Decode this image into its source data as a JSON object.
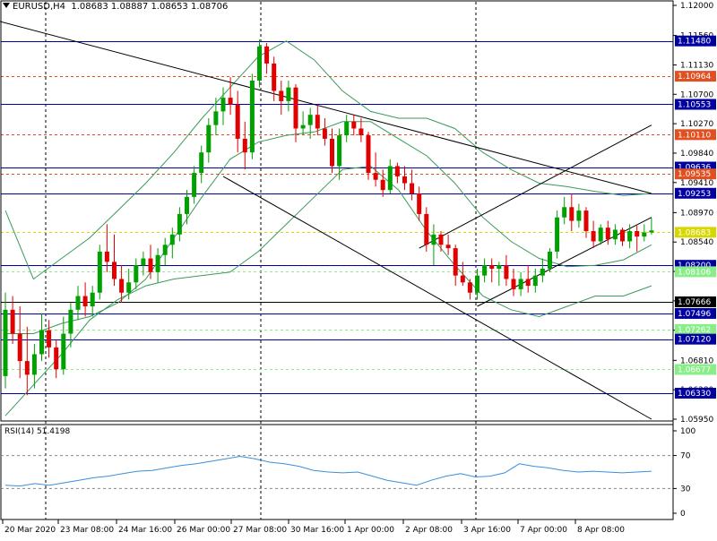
{
  "header": {
    "symbol": "EURUSD,H4",
    "ohlc": "1.08683 1.08887 1.08653 1.08706"
  },
  "rsi_header": {
    "label": "RSI(14) 51.4198"
  },
  "chart_data": [
    {
      "type": "candlestick",
      "title": "EURUSD,H4 1.08683 1.08887 1.08653 1.08706",
      "ylim": [
        1.0595,
        1.12
      ],
      "y_ticks": [
        "1.12000",
        "1.11560",
        "1.11130",
        "1.10700",
        "1.10270",
        "1.09840",
        "1.09410",
        "1.08970",
        "1.08540",
        "1.08110",
        "1.07680",
        "1.07250",
        "1.06810",
        "1.06380",
        "1.05950"
      ],
      "x_labels": [
        "20 Mar 2020",
        "23 Mar 08:00",
        "24 Mar 16:00",
        "26 Mar 00:00",
        "27 Mar 08:00",
        "30 Mar 16:00",
        "1 Apr 00:00",
        "2 Apr 08:00",
        "3 Apr 16:00",
        "7 Apr 00:00",
        "8 Apr 08:00"
      ],
      "colors": {
        "bull": "#00a000",
        "bear": "#e00000",
        "bands": "#3a9a5a",
        "rsi": "#3a8fd8"
      },
      "horizontal_levels": [
        {
          "value": 1.1148,
          "label": "1.11480",
          "style": "solid",
          "color": "#0000a0"
        },
        {
          "value": 1.10964,
          "label": "1.10964",
          "style": "dashed",
          "color": "#e05020"
        },
        {
          "value": 1.10553,
          "label": "1.10553",
          "style": "solid",
          "color": "#0000a0"
        },
        {
          "value": 1.1011,
          "label": "1.10110",
          "style": "dashed",
          "color": "#e05020"
        },
        {
          "value": 1.09636,
          "label": "1.09636",
          "style": "solid",
          "color": "#0000a0"
        },
        {
          "value": 1.09535,
          "label": "1.09535",
          "style": "dashed",
          "color": "#e05020"
        },
        {
          "value": 1.09253,
          "label": "1.09253",
          "style": "solid",
          "color": "#0000a0"
        },
        {
          "value": 1.08683,
          "label": "1.08683",
          "style": "dashed",
          "color": "#d8d800"
        },
        {
          "value": 1.082,
          "label": "1.08200",
          "style": "solid",
          "color": "#0000a0"
        },
        {
          "value": 1.08106,
          "label": "1.08106",
          "style": "dashed",
          "color": "#88ee88"
        },
        {
          "value": 1.07666,
          "label": "1.07666",
          "style": "solid",
          "color": "#000000"
        },
        {
          "value": 1.07496,
          "label": "1.07496",
          "style": "solid",
          "color": "#0000a0"
        },
        {
          "value": 1.07262,
          "label": "1.07262",
          "style": "dashed",
          "color": "#88ee88"
        },
        {
          "value": 1.0712,
          "label": "1.07120",
          "style": "solid",
          "color": "#0000a0"
        },
        {
          "value": 1.06677,
          "label": "1.06677",
          "style": "dashed",
          "color": "#88ee88"
        },
        {
          "value": 1.0633,
          "label": "1.06330",
          "style": "solid",
          "color": "#0000a0"
        }
      ],
      "candles": [
        [
          1.0658,
          1.078,
          1.064,
          1.0755
        ],
        [
          1.0755,
          1.0775,
          1.0705,
          1.072
        ],
        [
          1.072,
          1.076,
          1.0655,
          1.068
        ],
        [
          1.068,
          1.073,
          1.063,
          1.066
        ],
        [
          1.066,
          1.0705,
          1.064,
          1.069
        ],
        [
          1.069,
          1.075,
          1.068,
          1.0725
        ],
        [
          1.0725,
          1.074,
          1.0685,
          1.07
        ],
        [
          1.07,
          1.071,
          1.0655,
          1.0668
        ],
        [
          1.0668,
          1.0745,
          1.066,
          1.072
        ],
        [
          1.072,
          1.0765,
          1.07,
          1.0755
        ],
        [
          1.0755,
          1.079,
          1.074,
          1.0775
        ],
        [
          1.0775,
          1.0795,
          1.0745,
          1.076
        ],
        [
          1.076,
          1.079,
          1.0745,
          1.078
        ],
        [
          1.078,
          1.085,
          1.077,
          1.084
        ],
        [
          1.084,
          1.088,
          1.081,
          1.0825
        ],
        [
          1.0825,
          1.0865,
          1.079,
          1.08
        ],
        [
          1.08,
          1.082,
          1.0765,
          1.078
        ],
        [
          1.078,
          1.0815,
          1.077,
          1.0795
        ],
        [
          1.0795,
          1.083,
          1.0785,
          1.082
        ],
        [
          1.082,
          1.084,
          1.0805,
          1.083
        ],
        [
          1.083,
          1.085,
          1.08,
          1.081
        ],
        [
          1.081,
          1.0845,
          1.0795,
          1.0835
        ],
        [
          1.0835,
          1.086,
          1.082,
          1.085
        ],
        [
          1.085,
          1.0875,
          1.083,
          1.0865
        ],
        [
          1.0865,
          1.0905,
          1.0855,
          1.0895
        ],
        [
          1.0895,
          1.093,
          1.088,
          1.092
        ],
        [
          1.092,
          1.0965,
          1.091,
          1.0955
        ],
        [
          1.0955,
          1.0995,
          1.094,
          1.0985
        ],
        [
          1.0985,
          1.1035,
          1.097,
          1.1025
        ],
        [
          1.1025,
          1.1065,
          1.101,
          1.1045
        ],
        [
          1.1045,
          1.108,
          1.1025,
          1.1065
        ],
        [
          1.1065,
          1.1095,
          1.104,
          1.1055
        ],
        [
          1.1055,
          1.1075,
          1.0985,
          1.1005
        ],
        [
          1.1005,
          1.103,
          1.096,
          1.0985
        ],
        [
          1.0985,
          1.11,
          1.0975,
          1.109
        ],
        [
          1.109,
          1.115,
          1.108,
          1.114
        ],
        [
          1.114,
          1.1145,
          1.11,
          1.1115
        ],
        [
          1.1115,
          1.1125,
          1.106,
          1.1075
        ],
        [
          1.1075,
          1.109,
          1.104,
          1.106
        ],
        [
          1.106,
          1.109,
          1.1045,
          1.108
        ],
        [
          1.108,
          1.1085,
          1.1,
          1.102
        ],
        [
          1.102,
          1.1045,
          1.101,
          1.1025
        ],
        [
          1.1025,
          1.105,
          1.1005,
          1.104
        ],
        [
          1.104,
          1.1055,
          1.101,
          1.102
        ],
        [
          1.102,
          1.1035,
          1.0995,
          1.1005
        ],
        [
          1.1005,
          1.102,
          1.0955,
          1.0965
        ],
        [
          1.0965,
          1.102,
          1.0945,
          1.101
        ],
        [
          1.101,
          1.104,
          1.1,
          1.103
        ],
        [
          1.103,
          1.104,
          1.101,
          1.102
        ],
        [
          1.102,
          1.1035,
          1.1,
          1.101
        ],
        [
          1.101,
          1.1015,
          1.0945,
          1.0955
        ],
        [
          1.0955,
          1.0985,
          1.0935,
          1.0945
        ],
        [
          1.0945,
          1.096,
          1.092,
          1.093
        ],
        [
          1.093,
          1.0975,
          1.0925,
          1.0965
        ],
        [
          1.0965,
          1.097,
          1.094,
          1.095
        ],
        [
          1.095,
          1.0965,
          1.093,
          1.094
        ],
        [
          1.094,
          1.096,
          1.0915,
          1.0925
        ],
        [
          1.0925,
          1.0935,
          1.0885,
          1.0895
        ],
        [
          1.0895,
          1.0905,
          1.084,
          1.085
        ],
        [
          1.085,
          1.088,
          1.082,
          1.0865
        ],
        [
          1.0865,
          1.087,
          1.084,
          1.085
        ],
        [
          1.085,
          1.0865,
          1.0835,
          1.0845
        ],
        [
          1.0845,
          1.085,
          1.079,
          1.0805
        ],
        [
          1.0805,
          1.0825,
          1.079,
          1.0795
        ],
        [
          1.0795,
          1.08,
          1.077,
          1.078
        ],
        [
          1.078,
          1.0815,
          1.077,
          1.0805
        ],
        [
          1.0805,
          1.083,
          1.0795,
          1.082
        ],
        [
          1.082,
          1.083,
          1.0795,
          1.0815
        ],
        [
          1.0815,
          1.0825,
          1.079,
          1.082
        ],
        [
          1.082,
          1.0835,
          1.079,
          1.08
        ],
        [
          1.08,
          1.0815,
          1.0775,
          1.0785
        ],
        [
          1.0785,
          1.081,
          1.0775,
          1.08
        ],
        [
          1.08,
          1.082,
          1.078,
          1.079
        ],
        [
          1.079,
          1.0815,
          1.078,
          1.0805
        ],
        [
          1.0805,
          1.083,
          1.0795,
          1.0815
        ],
        [
          1.0815,
          1.0845,
          1.081,
          1.084
        ],
        [
          1.084,
          1.09,
          1.083,
          1.089
        ],
        [
          1.089,
          1.092,
          1.088,
          1.0905
        ],
        [
          1.0905,
          1.0925,
          1.087,
          1.0885
        ],
        [
          1.0885,
          1.091,
          1.0875,
          1.09
        ],
        [
          1.09,
          1.0905,
          1.086,
          1.087
        ],
        [
          1.087,
          1.0885,
          1.0845,
          1.0855
        ],
        [
          1.0855,
          1.088,
          1.085,
          1.0875
        ],
        [
          1.0875,
          1.0885,
          1.085,
          1.0858
        ],
        [
          1.0858,
          1.088,
          1.085,
          1.0872
        ],
        [
          1.0872,
          1.0875,
          1.0848,
          1.0855
        ],
        [
          1.0855,
          1.088,
          1.0845,
          1.087
        ],
        [
          1.087,
          1.0878,
          1.084,
          1.0862
        ],
        [
          1.0862,
          1.088,
          1.0855,
          1.0868
        ],
        [
          1.0868,
          1.0889,
          1.0865,
          1.0871
        ]
      ],
      "trendlines": [
        {
          "from": [
            -2,
            1.118
          ],
          "to": [
            89,
            1.0925
          ]
        },
        {
          "from": [
            30,
            1.095
          ],
          "to": [
            89,
            1.0595
          ]
        },
        {
          "from": [
            65,
            1.076
          ],
          "to": [
            89,
            1.089
          ]
        },
        {
          "from": [
            57,
            1.0845
          ],
          "to": [
            89,
            1.1025
          ]
        }
      ],
      "bands": {
        "upper": [
          1.09,
          1.08,
          1.083,
          1.086,
          1.09,
          1.094,
          1.0985,
          1.1035,
          1.108,
          1.1125,
          1.1148,
          1.112,
          1.1075,
          1.1045,
          1.1035,
          1.1035,
          1.102,
          1.0985,
          1.096,
          1.094,
          1.0935,
          1.0928,
          1.0922,
          1.0925
        ],
        "middle": [
          1.072,
          1.072,
          1.0735,
          1.0745,
          1.0765,
          1.08,
          1.086,
          1.092,
          1.0975,
          1.1,
          1.101,
          1.1015,
          1.103,
          1.103,
          1.1005,
          1.098,
          1.094,
          1.089,
          1.0855,
          1.083,
          1.0818,
          1.082,
          1.0828,
          1.085
        ],
        "lower": [
          1.06,
          1.0645,
          1.069,
          1.074,
          1.077,
          1.079,
          1.08,
          1.0805,
          1.081,
          1.084,
          1.088,
          1.092,
          1.096,
          1.0965,
          1.093,
          1.087,
          1.082,
          1.0775,
          1.0755,
          1.0745,
          1.076,
          1.0775,
          1.0775,
          1.079
        ]
      }
    },
    {
      "type": "line",
      "title": "RSI(14) 51.4198",
      "ylim": [
        0,
        100
      ],
      "y_ticks": [
        "100",
        "70",
        "30",
        "0"
      ],
      "levels": [
        70,
        30
      ],
      "values": [
        34,
        33,
        36,
        34,
        37,
        40,
        43,
        45,
        48,
        51,
        52,
        55,
        58,
        60,
        63,
        66,
        69,
        66,
        62,
        60,
        57,
        52,
        50,
        49,
        50,
        45,
        40,
        37,
        34,
        40,
        45,
        48,
        44,
        45,
        49,
        60,
        57,
        55,
        52,
        50,
        51,
        50,
        49,
        50,
        51
      ]
    }
  ]
}
